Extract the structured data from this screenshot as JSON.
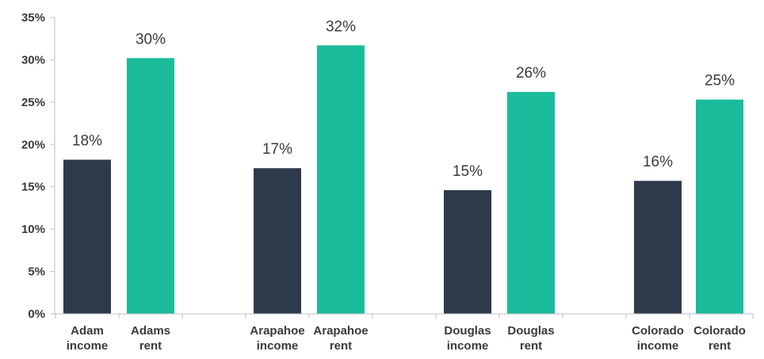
{
  "chart_data": {
    "type": "bar",
    "title": "",
    "xlabel": "",
    "ylabel": "",
    "ylim": [
      0,
      35
    ],
    "yticks": [
      "0%",
      "5%",
      "10%",
      "15%",
      "20%",
      "25%",
      "30%",
      "35%"
    ],
    "grid": false,
    "legend": "none",
    "categories": [
      [
        "Adam",
        "income"
      ],
      [
        "Adams",
        "rent"
      ],
      [
        "Arapahoe",
        "income"
      ],
      [
        "Arapahoe",
        "rent"
      ],
      [
        "Douglas",
        "income"
      ],
      [
        "Douglas",
        "rent"
      ],
      [
        "Colorado",
        "income"
      ],
      [
        "Colorado",
        "rent"
      ]
    ],
    "values": [
      18.2,
      30.2,
      17.2,
      31.7,
      14.6,
      26.2,
      15.7,
      25.3
    ],
    "data_labels": [
      "18%",
      "30%",
      "17%",
      "32%",
      "15%",
      "26%",
      "16%",
      "25%"
    ],
    "bar_colors": [
      "#2d3a4c",
      "#1abc9c",
      "#2d3a4c",
      "#1abc9c",
      "#2d3a4c",
      "#1abc9c",
      "#2d3a4c",
      "#1abc9c"
    ]
  }
}
